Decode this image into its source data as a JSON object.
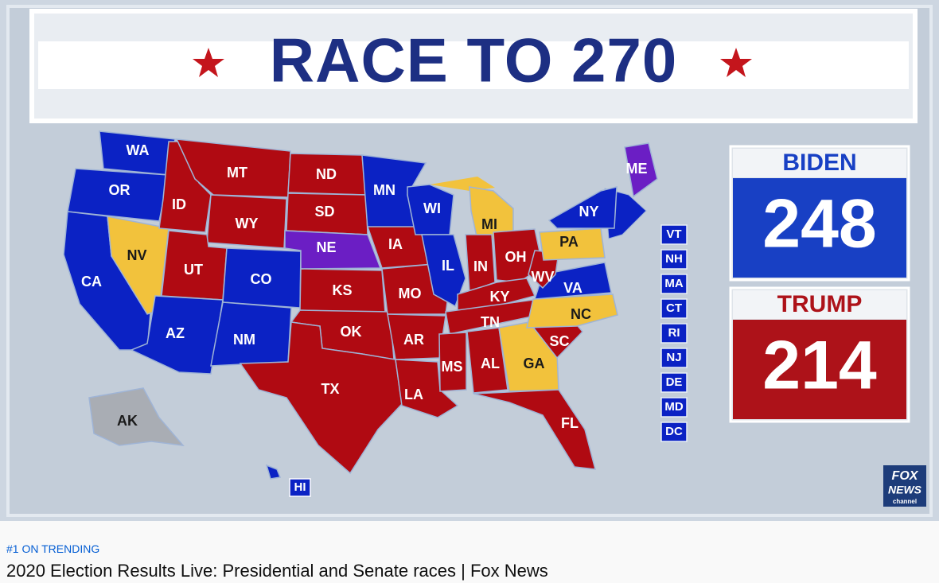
{
  "banner": {
    "title": "RACE TO 270"
  },
  "states": [
    {
      "label": "WA",
      "color": "#0b22c4"
    },
    {
      "label": "OR",
      "color": "#0b22c4"
    },
    {
      "label": "CA",
      "color": "#0b22c4"
    },
    {
      "label": "NV",
      "color": "#f2c23c"
    },
    {
      "label": "ID",
      "color": "#b00a12"
    },
    {
      "label": "MT",
      "color": "#b00a12"
    },
    {
      "label": "WY",
      "color": "#b00a12"
    },
    {
      "label": "UT",
      "color": "#b00a12"
    },
    {
      "label": "AZ",
      "color": "#0b22c4"
    },
    {
      "label": "CO",
      "color": "#0b22c4"
    },
    {
      "label": "NM",
      "color": "#0b22c4"
    },
    {
      "label": "ND",
      "color": "#b00a12"
    },
    {
      "label": "SD",
      "color": "#b00a12"
    },
    {
      "label": "NE",
      "color": "#6b1ec4"
    },
    {
      "label": "KS",
      "color": "#b00a12"
    },
    {
      "label": "OK",
      "color": "#b00a12"
    },
    {
      "label": "TX",
      "color": "#b00a12"
    },
    {
      "label": "MN",
      "color": "#0b22c4"
    },
    {
      "label": "IA",
      "color": "#b00a12"
    },
    {
      "label": "MO",
      "color": "#b00a12"
    },
    {
      "label": "AR",
      "color": "#b00a12"
    },
    {
      "label": "LA",
      "color": "#b00a12"
    },
    {
      "label": "WI",
      "color": "#0b22c4"
    },
    {
      "label": "IL",
      "color": "#0b22c4"
    },
    {
      "label": "MI",
      "color": "#f2c23c"
    },
    {
      "label": "IN",
      "color": "#b00a12"
    },
    {
      "label": "OH",
      "color": "#b00a12"
    },
    {
      "label": "KY",
      "color": "#b00a12"
    },
    {
      "label": "TN",
      "color": "#b00a12"
    },
    {
      "label": "MS",
      "color": "#b00a12"
    },
    {
      "label": "AL",
      "color": "#b00a12"
    },
    {
      "label": "GA",
      "color": "#f2c23c"
    },
    {
      "label": "FL",
      "color": "#b00a12"
    },
    {
      "label": "SC",
      "color": "#b00a12"
    },
    {
      "label": "NC",
      "color": "#f2c23c"
    },
    {
      "label": "VA",
      "color": "#0b22c4"
    },
    {
      "label": "WV",
      "color": "#b00a12"
    },
    {
      "label": "PA",
      "color": "#f2c23c"
    },
    {
      "label": "NY",
      "color": "#0b22c4"
    },
    {
      "label": "ME",
      "color": "#6b1ec4"
    },
    {
      "label": "AK",
      "color": "#a9adb4"
    },
    {
      "label": "HI",
      "color": "#0b22c4"
    }
  ],
  "small_states": [
    {
      "label": "VT",
      "color": "#0b22c4"
    },
    {
      "label": "NH",
      "color": "#0b22c4"
    },
    {
      "label": "MA",
      "color": "#0b22c4"
    },
    {
      "label": "CT",
      "color": "#0b22c4"
    },
    {
      "label": "RI",
      "color": "#0b22c4"
    },
    {
      "label": "NJ",
      "color": "#0b22c4"
    },
    {
      "label": "DE",
      "color": "#0b22c4"
    },
    {
      "label": "MD",
      "color": "#0b22c4"
    },
    {
      "label": "DC",
      "color": "#0b22c4"
    }
  ],
  "scoreboard": [
    {
      "name": "BIDEN",
      "votes": 248,
      "color": "#1840c4"
    },
    {
      "name": "TRUMP",
      "votes": 214,
      "color": "#ad1219"
    }
  ],
  "logo": {
    "line1": "FOX",
    "line2": "NEWS",
    "line3": "channel"
  },
  "trending": "#1 ON TRENDING",
  "video_title": "2020 Election Results Live: Presidential and Senate races | Fox News"
}
